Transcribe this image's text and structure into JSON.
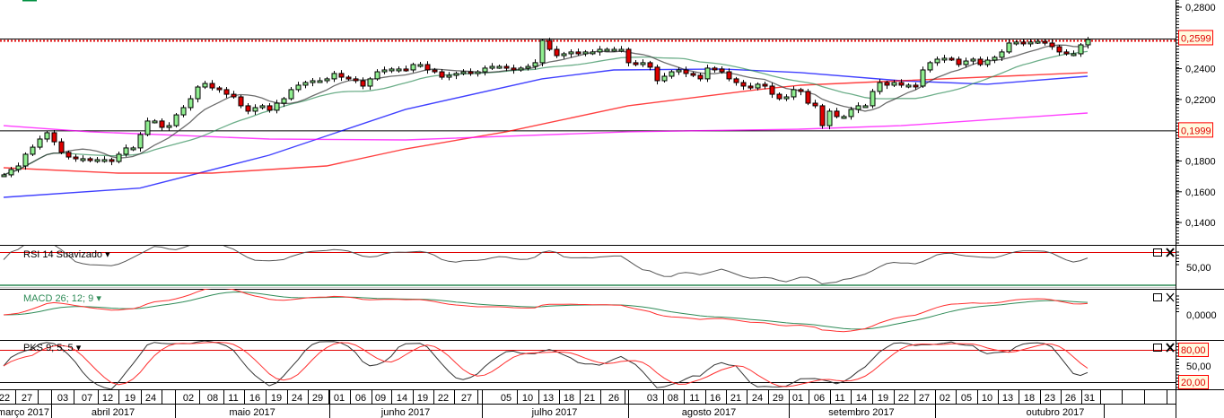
{
  "price_axis": {
    "ticks": [
      "0,2800",
      "0,2400",
      "0,2200",
      "0,1800",
      "0,1600",
      "0,1400"
    ],
    "tick_values": [
      0.28,
      0.24,
      0.22,
      0.18,
      0.16,
      0.14
    ],
    "markers": [
      {
        "label": "0,2599",
        "value": 0.2599,
        "line": "red-dotted"
      },
      {
        "label": "0,1999",
        "value": 0.1999,
        "line": "black-solid"
      }
    ]
  },
  "panels": {
    "rsi": {
      "title": "RSI 14 Suavizado",
      "dropdown": "▾",
      "axis_label": "50,00"
    },
    "macd": {
      "title": "MACD 26; 12; 9",
      "dropdown": "▾",
      "axis_label": "0,0000"
    },
    "pks": {
      "title": "PKS 9; 5; 5",
      "dropdown": "▾",
      "axis_labels": {
        "upper": "80,00",
        "mid": "50,00",
        "lower": "20,00"
      }
    },
    "maximize_icon": "window-icon",
    "close_icon": "close-icon"
  },
  "colors": {
    "up": "#90ee90",
    "down": "#e00000",
    "ma_short": "#303030",
    "ma_mid": "#2e8b57",
    "ma_blue": "#0000ff",
    "ma_red": "#ff0000",
    "ma_magenta": "#ff00ff",
    "marker_bg": "#fffbe0"
  },
  "date_axis": {
    "days": [
      "22",
      "27",
      "03",
      "07",
      "12",
      "19",
      "24",
      "02",
      "08",
      "11",
      "16",
      "19",
      "24",
      "29",
      "01",
      "06",
      "09",
      "14",
      "19",
      "22",
      "27",
      "05",
      "10",
      "13",
      "18",
      "21",
      "26",
      "03",
      "08",
      "11",
      "16",
      "21",
      "24",
      "29",
      "01",
      "06",
      "11",
      "14",
      "19",
      "22",
      "27",
      "02",
      "05",
      "10",
      "13",
      "18",
      "23",
      "26",
      "31"
    ],
    "months": [
      "março 2017",
      "abril 2017",
      "maio 2017",
      "junho 2017",
      "julho 2017",
      "agosto 2017",
      "setembro 2017",
      "outubro 2017"
    ]
  },
  "chart_data": {
    "type": "candlestick",
    "y_range": [
      0.13,
      0.285
    ],
    "closes": [
      0.171,
      0.1745,
      0.1768,
      0.1844,
      0.189,
      0.1943,
      0.1984,
      0.1925,
      0.1856,
      0.1826,
      0.1815,
      0.1815,
      0.1803,
      0.1809,
      0.1809,
      0.1797,
      0.1844,
      0.1885,
      0.1885,
      0.1972,
      0.206,
      0.206,
      0.2019,
      0.203,
      0.21,
      0.2147,
      0.2205,
      0.2281,
      0.2304,
      0.2275,
      0.2264,
      0.2234,
      0.2217,
      0.2159,
      0.2124,
      0.2147,
      0.2159,
      0.213,
      0.2176,
      0.2205,
      0.2264,
      0.2293,
      0.231,
      0.2322,
      0.2322,
      0.2334,
      0.2369,
      0.2345,
      0.2334,
      0.2322,
      0.2287,
      0.2334,
      0.238,
      0.2392,
      0.2398,
      0.2398,
      0.2392,
      0.2427,
      0.2427,
      0.2392,
      0.238,
      0.2345,
      0.2357,
      0.2369,
      0.238,
      0.2369,
      0.238,
      0.2404,
      0.2415,
      0.2415,
      0.2404,
      0.2392,
      0.2404,
      0.2415,
      0.2439,
      0.2584,
      0.2526,
      0.2485,
      0.2497,
      0.2509,
      0.2497,
      0.2509,
      0.2509,
      0.2526,
      0.2526,
      0.2526,
      0.2526,
      0.2439,
      0.2427,
      0.2439,
      0.241,
      0.2322,
      0.2351,
      0.238,
      0.2392,
      0.2369,
      0.2357,
      0.2334,
      0.2404,
      0.2398,
      0.238,
      0.2334,
      0.231,
      0.2287,
      0.2275,
      0.2299,
      0.2287,
      0.2234,
      0.2205,
      0.2217,
      0.2264,
      0.2252,
      0.2176,
      0.2159,
      0.203,
      0.2124,
      0.2089,
      0.2089,
      0.2135,
      0.2159,
      0.2159,
      0.2252,
      0.231,
      0.2293,
      0.231,
      0.2293,
      0.2293,
      0.2287,
      0.2392,
      0.2439,
      0.2462,
      0.2468,
      0.2462,
      0.2427,
      0.245,
      0.2462,
      0.2427,
      0.2456,
      0.2474,
      0.2509,
      0.2567,
      0.2573,
      0.2567,
      0.2573,
      0.2578,
      0.2567,
      0.2543,
      0.2509,
      0.2497,
      0.2497,
      0.2555,
      0.259
    ],
    "overlays": [
      {
        "color": "blue",
        "points": [
          [
            0,
            0.1564
          ],
          [
            19,
            0.1624
          ],
          [
            37,
            0.1838
          ],
          [
            56,
            0.2136
          ],
          [
            75,
            0.2334
          ],
          [
            85,
            0.2392
          ],
          [
            100,
            0.2398
          ],
          [
            111,
            0.2375
          ],
          [
            125,
            0.2322
          ],
          [
            137,
            0.2299
          ],
          [
            151,
            0.2351
          ]
        ]
      },
      {
        "color": "red",
        "points": [
          [
            0,
            0.1756
          ],
          [
            16,
            0.1721
          ],
          [
            29,
            0.1721
          ],
          [
            45,
            0.1768
          ],
          [
            56,
            0.1879
          ],
          [
            70,
            0.199
          ],
          [
            87,
            0.2159
          ],
          [
            105,
            0.2264
          ],
          [
            111,
            0.2293
          ],
          [
            125,
            0.2322
          ],
          [
            151,
            0.2375
          ]
        ]
      },
      {
        "color": "magenta",
        "points": [
          [
            0,
            0.203
          ],
          [
            12,
            0.199
          ],
          [
            37,
            0.1943
          ],
          [
            56,
            0.1937
          ],
          [
            87,
            0.199
          ],
          [
            111,
            0.2007
          ],
          [
            125,
            0.203
          ],
          [
            151,
            0.2112
          ]
        ]
      }
    ],
    "pks_levels": [
      80,
      20
    ]
  }
}
